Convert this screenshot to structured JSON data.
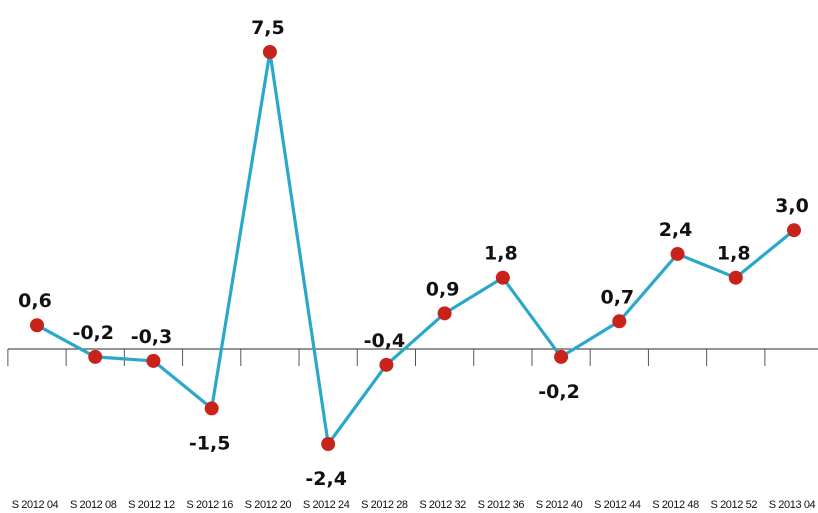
{
  "chart_data": {
    "type": "line",
    "categories": [
      "S 2012 04",
      "S 2012 08",
      "S 2012 12",
      "S 2012 16",
      "S 2012 20",
      "S 2012 24",
      "S 2012 28",
      "S 2012 32",
      "S 2012 36",
      "S 2012 40",
      "S 2012 44",
      "S 2012 48",
      "S 2012 52",
      "S 2013 04"
    ],
    "values": [
      0.6,
      -0.2,
      -0.3,
      -1.5,
      7.5,
      -2.4,
      -0.4,
      0.9,
      1.8,
      -0.2,
      0.7,
      2.4,
      1.8,
      3.0
    ],
    "data_labels": [
      "0,6",
      "-0,2",
      "-0,3",
      "-1,5",
      "7,5",
      "-2,4",
      "-0,4",
      "0,9",
      "1,8",
      "-0,2",
      "0,7",
      "2,4",
      "1,8",
      "3,0"
    ],
    "line_color": "#29A8C9",
    "marker_color": "#C8231A",
    "axis_color": "#555555",
    "grid": false,
    "legend": "none"
  }
}
